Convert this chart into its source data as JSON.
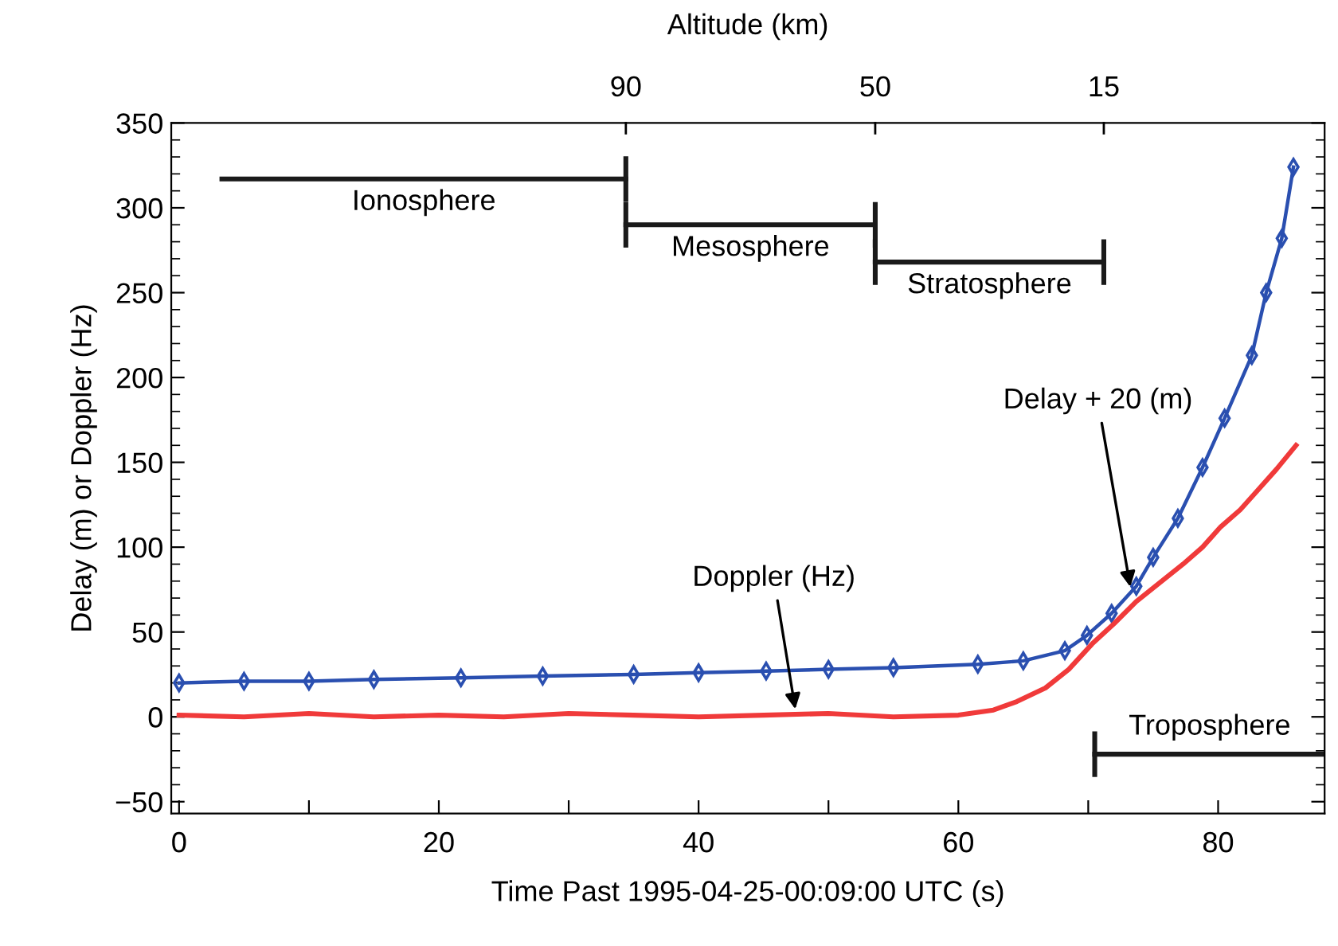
{
  "chart_data": {
    "type": "line",
    "xlabel": "Time Past 1995-04-25-00:09:00 UTC (s)",
    "ylabel": "Delay (m) or Doppler (Hz)",
    "xlim": [
      -0.6,
      88.2
    ],
    "ylim": [
      -57,
      350
    ],
    "xticks": [
      0,
      {
        "value": 10,
        "label": null
      },
      20,
      {
        "value": 30,
        "label": null
      },
      40,
      {
        "value": 50,
        "label": null
      },
      60,
      {
        "value": 70,
        "label": null
      },
      80
    ],
    "yticks": [
      {
        "value": -50,
        "label": "−50"
      },
      0,
      50,
      100,
      150,
      200,
      250,
      300,
      350
    ],
    "marker": "none",
    "line_style": "solid",
    "grid": false,
    "series": [
      {
        "color": "#2a4fb0",
        "marker": "diamond",
        "x": [
          0,
          5,
          10,
          15,
          21.7,
          28,
          35,
          40,
          45.2,
          50,
          55,
          61.5,
          65,
          68.2,
          69.9,
          71.8,
          73.7,
          75,
          76.9,
          78.8,
          80.5,
          82.6,
          83.7,
          84.9,
          85.8
        ],
        "values": [
          20,
          21,
          21,
          22,
          23,
          24,
          25,
          26,
          27,
          28,
          29,
          31,
          33,
          39,
          48,
          61,
          77,
          94,
          117,
          147,
          176,
          213,
          250,
          282,
          324
        ]
      },
      {
        "color": "#f03a3a",
        "x": [
          0,
          5,
          10,
          15,
          20,
          25,
          30,
          35,
          40,
          45,
          50,
          55,
          60,
          62.7,
          64.5,
          66.7,
          68.5,
          70.3,
          72,
          73.7,
          75.5,
          77.3,
          78.8,
          80.2,
          81.7,
          83.1,
          84.5,
          86
        ],
        "values": [
          1,
          0,
          2,
          0,
          1,
          0,
          2,
          1,
          0,
          1,
          2,
          0,
          1,
          4,
          9,
          17,
          28,
          43,
          55,
          68,
          79,
          90,
          100,
          112,
          122,
          134,
          146,
          160
        ]
      },
      {
        "name": "Ionosphere",
        "color": "#1a1a1a",
        "x": [
          3.3,
          34.4
        ],
        "values": [
          317,
          317
        ]
      },
      {
        "name": "Mesosphere",
        "color": "#1a1a1a",
        "x": [
          34.4,
          53.6
        ],
        "values": [
          290,
          290
        ]
      },
      {
        "name": "Stratosphere",
        "color": "#1a1a1a",
        "x": [
          53.6,
          71.2
        ],
        "values": [
          268,
          268
        ]
      },
      {
        "name": "Troposphere",
        "color": "#1a1a1a",
        "x": [
          70.5,
          88.2
        ],
        "values": [
          -22,
          -22
        ]
      }
    ],
    "annotations": [
      {
        "text": "Doppler (Hz)",
        "x": 47.5,
        "y": 2
      },
      {
        "text": "Delay + 20 (m)",
        "x": 73.3,
        "y": 74
      },
      "Altitude (km)",
      "90",
      "50",
      "15"
    ]
  }
}
